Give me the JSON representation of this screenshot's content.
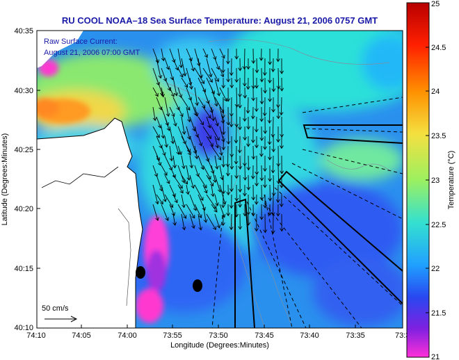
{
  "title": "RU COOL  NOAA–18  Sea Surface Temperature:  August 21, 2006 0757 GMT",
  "legend": {
    "line1": "Raw Surface Current:",
    "line2": "August 21, 2006 07:00 GMT"
  },
  "axes": {
    "xlabel": "Longitude (Degrees:Minutes)",
    "ylabel": "Latitude (Degrees:Minutes)",
    "x_ticks": [
      "74:10",
      "74:05",
      "74:00",
      "73:55",
      "73:50",
      "73:45",
      "73:40",
      "73:35",
      "73:3"
    ],
    "y_ticks": [
      "40:35",
      "40:30",
      "40:25",
      "40:20",
      "40:15",
      "40:10"
    ]
  },
  "scale_arrow_label": "50 cm/s",
  "colorbar": {
    "label": "Temperature (°C)",
    "ticks": [
      "25",
      "24.5",
      "24",
      "23.5",
      "23",
      "22.5",
      "22",
      "21.5",
      "21"
    ],
    "colors": [
      "#b80000",
      "#ff2000",
      "#ff9000",
      "#f4e040",
      "#9cf060",
      "#34e0d0",
      "#20a0ff",
      "#2848f0",
      "#8020e0",
      "#ff30d8"
    ]
  },
  "colors": {
    "title": "#1a1aa8",
    "land": "#ffffff"
  }
}
